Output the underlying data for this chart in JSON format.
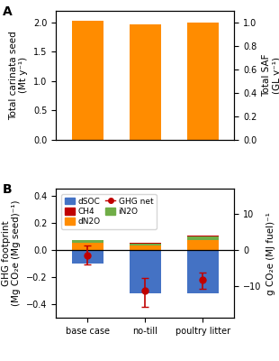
{
  "panel_A": {
    "categories": [
      "base case",
      "no-till",
      "poultry litter"
    ],
    "values_Mt": [
      2.03,
      1.97,
      2.0
    ],
    "bar_color": "#FF8C00",
    "ylabel_left": "Total carinata seed\n(Mt y⁻¹)",
    "ylabel_right": "Total SAF\n(GL y⁻¹)",
    "ylim_left": [
      0,
      2.2
    ],
    "ylim_right": [
      0,
      1.1
    ]
  },
  "panel_B": {
    "categories": [
      "base case",
      "no-till",
      "poultry litter"
    ],
    "dSOC": [
      -0.1,
      -0.32,
      -0.32
    ],
    "dN2O": [
      0.055,
      0.035,
      0.07
    ],
    "iN2O": [
      0.015,
      0.01,
      0.03
    ],
    "CH4": [
      0.005,
      0.004,
      0.004
    ],
    "ghg_net": [
      -0.04,
      -0.3,
      -0.22
    ],
    "ghg_net_err_low": [
      0.07,
      0.12,
      0.07
    ],
    "ghg_net_err_high": [
      0.07,
      0.09,
      0.05
    ],
    "ylabel_left": "GHG footprint\n(Mg CO₂e (Mg seed)⁻¹)",
    "ylabel_right": "g CO₂e (MJ fuel)⁻¹",
    "ylim_left": [
      -0.5,
      0.45
    ],
    "ylim_right": [
      -18.75,
      16.875
    ],
    "colors": {
      "dSOC": "#4472C4",
      "dN2O": "#FF8C00",
      "iN2O": "#70AD47",
      "CH4": "#C00000",
      "ghg_net_marker": "#C00000",
      "ghg_net_line": "#C00000"
    }
  },
  "label_fontsize": 7.5,
  "tick_fontsize": 7,
  "panel_label_fontsize": 10
}
